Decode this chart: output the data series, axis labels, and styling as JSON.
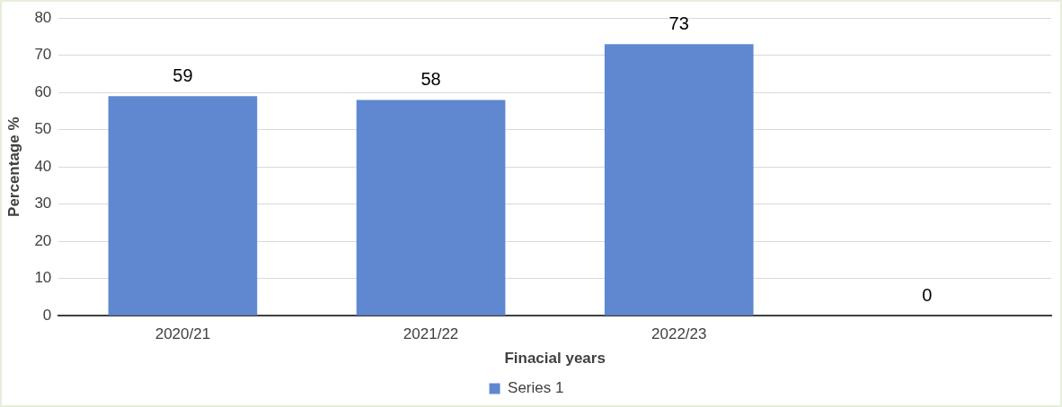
{
  "chart_data": {
    "type": "bar",
    "xlabel": "Finacial years",
    "ylabel": "Percentage %",
    "categories": [
      "2020/21",
      "2021/22",
      "2022/23",
      null
    ],
    "series": [
      {
        "name": "Series 1",
        "color": "#6088d0",
        "values": [
          59,
          58,
          73,
          0
        ]
      }
    ],
    "ylim": [
      0,
      80
    ],
    "yticks": [
      0,
      10,
      20,
      30,
      40,
      50,
      60,
      70,
      80
    ],
    "grid": "y",
    "legend": "bottom",
    "data_labels": true
  }
}
